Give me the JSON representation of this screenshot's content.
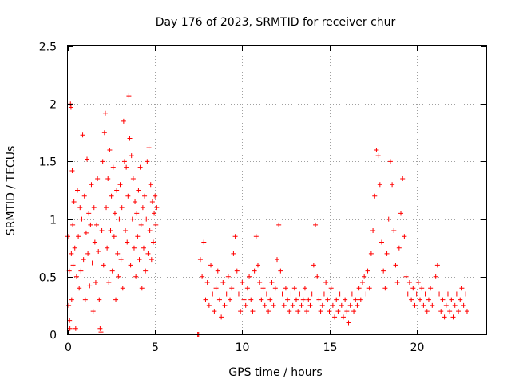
{
  "chart_data": {
    "type": "scatter",
    "title": "Day 176 of 2023, SRMTID for receiver chur",
    "xlabel": "GPS time / hours",
    "ylabel": "SRMTID / TECUs",
    "xlim": [
      0,
      24
    ],
    "ylim": [
      0,
      2.5
    ],
    "xticks": [
      0,
      5,
      10,
      15,
      20
    ],
    "xtick_labels": [
      "0",
      "5",
      "10",
      "15",
      "20"
    ],
    "yticks": [
      0,
      0.5,
      1,
      1.5,
      2,
      2.5
    ],
    "ytick_labels": [
      "0",
      "0.5",
      "1",
      "1.5",
      "2",
      "2.5"
    ],
    "grid": true,
    "marker": "+",
    "color": "#ff0000",
    "series": [
      {
        "name": "SRMTID",
        "points": [
          [
            0.0,
            0.85
          ],
          [
            0.05,
            0.25
          ],
          [
            0.08,
            0.55
          ],
          [
            0.1,
            0.12
          ],
          [
            0.12,
            0.05
          ],
          [
            0.15,
            2.0
          ],
          [
            0.18,
            1.97
          ],
          [
            0.2,
            0.7
          ],
          [
            0.22,
            0.3
          ],
          [
            0.25,
            1.42
          ],
          [
            0.28,
            0.95
          ],
          [
            0.3,
            0.6
          ],
          [
            0.35,
            1.15
          ],
          [
            0.4,
            0.75
          ],
          [
            0.45,
            0.05
          ],
          [
            0.5,
            0.5
          ],
          [
            0.55,
            1.25
          ],
          [
            0.6,
            0.85
          ],
          [
            0.65,
            0.4
          ],
          [
            0.7,
            1.1
          ],
          [
            0.75,
            0.55
          ],
          [
            0.8,
            1.0
          ],
          [
            0.85,
            1.73
          ],
          [
            0.9,
            0.65
          ],
          [
            0.95,
            1.2
          ],
          [
            1.0,
            0.3
          ],
          [
            1.05,
            0.88
          ],
          [
            1.1,
            1.52
          ],
          [
            1.15,
            0.7
          ],
          [
            1.2,
            1.05
          ],
          [
            1.25,
            0.42
          ],
          [
            1.3,
            0.95
          ],
          [
            1.35,
            1.3
          ],
          [
            1.4,
            0.62
          ],
          [
            1.45,
            0.2
          ],
          [
            1.5,
            1.1
          ],
          [
            1.55,
            0.8
          ],
          [
            1.6,
            0.45
          ],
          [
            1.65,
            0.95
          ],
          [
            1.7,
            1.35
          ],
          [
            1.75,
            0.72
          ],
          [
            1.8,
            0.3
          ],
          [
            1.85,
            0.05
          ],
          [
            1.9,
            0.02
          ],
          [
            1.95,
            0.9
          ],
          [
            2.0,
            1.5
          ],
          [
            2.05,
            0.6
          ],
          [
            2.1,
            1.75
          ],
          [
            2.15,
            1.92
          ],
          [
            2.2,
            1.1
          ],
          [
            2.25,
            0.75
          ],
          [
            2.3,
            1.35
          ],
          [
            2.35,
            0.45
          ],
          [
            2.4,
            1.6
          ],
          [
            2.45,
            0.9
          ],
          [
            2.5,
            1.2
          ],
          [
            2.55,
            0.55
          ],
          [
            2.6,
            1.45
          ],
          [
            2.65,
            0.85
          ],
          [
            2.7,
            1.05
          ],
          [
            2.75,
            0.3
          ],
          [
            2.8,
            1.25
          ],
          [
            2.85,
            0.7
          ],
          [
            2.9,
            0.5
          ],
          [
            2.95,
            1.0
          ],
          [
            3.0,
            1.3
          ],
          [
            3.05,
            0.65
          ],
          [
            3.1,
            1.1
          ],
          [
            3.15,
            0.4
          ],
          [
            3.2,
            1.85
          ],
          [
            3.25,
            1.5
          ],
          [
            3.3,
            0.9
          ],
          [
            3.35,
            1.45
          ],
          [
            3.4,
            0.8
          ],
          [
            3.45,
            1.2
          ],
          [
            3.5,
            2.07
          ],
          [
            3.55,
            1.7
          ],
          [
            3.6,
            0.6
          ],
          [
            3.65,
            1.55
          ],
          [
            3.7,
            1.0
          ],
          [
            3.75,
            1.35
          ],
          [
            3.8,
            0.75
          ],
          [
            3.85,
            1.15
          ],
          [
            3.9,
            0.5
          ],
          [
            3.95,
            1.05
          ],
          [
            4.0,
            0.85
          ],
          [
            4.05,
            1.25
          ],
          [
            4.1,
            0.65
          ],
          [
            4.15,
            1.45
          ],
          [
            4.2,
            0.95
          ],
          [
            4.25,
            0.4
          ],
          [
            4.3,
            1.1
          ],
          [
            4.35,
            0.75
          ],
          [
            4.4,
            1.2
          ],
          [
            4.45,
            0.55
          ],
          [
            4.5,
            1.0
          ],
          [
            4.55,
            1.5
          ],
          [
            4.6,
            0.7
          ],
          [
            4.65,
            1.62
          ],
          [
            4.7,
            0.9
          ],
          [
            4.75,
            1.3
          ],
          [
            4.8,
            0.65
          ],
          [
            4.85,
            1.15
          ],
          [
            4.9,
            0.8
          ],
          [
            4.95,
            1.05
          ],
          [
            5.0,
            1.2
          ],
          [
            5.05,
            0.95
          ],
          [
            5.1,
            1.1
          ],
          [
            7.45,
            0.0
          ],
          [
            7.5,
            0.0
          ],
          [
            7.6,
            0.65
          ],
          [
            7.7,
            0.5
          ],
          [
            7.8,
            0.8
          ],
          [
            7.9,
            0.3
          ],
          [
            8.0,
            0.45
          ],
          [
            8.1,
            0.25
          ],
          [
            8.2,
            0.6
          ],
          [
            8.3,
            0.35
          ],
          [
            8.4,
            0.2
          ],
          [
            8.5,
            0.4
          ],
          [
            8.6,
            0.55
          ],
          [
            8.7,
            0.3
          ],
          [
            8.8,
            0.15
          ],
          [
            8.9,
            0.45
          ],
          [
            9.0,
            0.25
          ],
          [
            9.1,
            0.35
          ],
          [
            9.2,
            0.5
          ],
          [
            9.3,
            0.3
          ],
          [
            9.4,
            0.4
          ],
          [
            9.5,
            0.7
          ],
          [
            9.6,
            0.85
          ],
          [
            9.7,
            0.55
          ],
          [
            9.8,
            0.35
          ],
          [
            9.9,
            0.2
          ],
          [
            10.0,
            0.45
          ],
          [
            10.1,
            0.3
          ],
          [
            10.2,
            0.25
          ],
          [
            10.3,
            0.4
          ],
          [
            10.4,
            0.5
          ],
          [
            10.5,
            0.3
          ],
          [
            10.6,
            0.2
          ],
          [
            10.7,
            0.55
          ],
          [
            10.8,
            0.85
          ],
          [
            10.9,
            0.6
          ],
          [
            11.0,
            0.45
          ],
          [
            11.1,
            0.3
          ],
          [
            11.2,
            0.4
          ],
          [
            11.3,
            0.25
          ],
          [
            11.4,
            0.35
          ],
          [
            11.5,
            0.2
          ],
          [
            11.6,
            0.3
          ],
          [
            11.7,
            0.45
          ],
          [
            11.8,
            0.25
          ],
          [
            11.9,
            0.4
          ],
          [
            12.0,
            0.65
          ],
          [
            12.1,
            0.95
          ],
          [
            12.2,
            0.55
          ],
          [
            12.3,
            0.35
          ],
          [
            12.4,
            0.25
          ],
          [
            12.5,
            0.4
          ],
          [
            12.6,
            0.3
          ],
          [
            12.7,
            0.2
          ],
          [
            12.8,
            0.35
          ],
          [
            12.9,
            0.25
          ],
          [
            13.0,
            0.4
          ],
          [
            13.1,
            0.3
          ],
          [
            13.2,
            0.2
          ],
          [
            13.3,
            0.35
          ],
          [
            13.4,
            0.25
          ],
          [
            13.5,
            0.3
          ],
          [
            13.6,
            0.4
          ],
          [
            13.7,
            0.2
          ],
          [
            13.8,
            0.3
          ],
          [
            13.9,
            0.25
          ],
          [
            14.0,
            0.35
          ],
          [
            14.1,
            0.6
          ],
          [
            14.2,
            0.95
          ],
          [
            14.3,
            0.5
          ],
          [
            14.4,
            0.3
          ],
          [
            14.5,
            0.2
          ],
          [
            14.6,
            0.25
          ],
          [
            14.7,
            0.35
          ],
          [
            14.8,
            0.45
          ],
          [
            14.9,
            0.3
          ],
          [
            15.0,
            0.2
          ],
          [
            15.1,
            0.4
          ],
          [
            15.2,
            0.25
          ],
          [
            15.3,
            0.15
          ],
          [
            15.4,
            0.3
          ],
          [
            15.5,
            0.2
          ],
          [
            15.6,
            0.35
          ],
          [
            15.7,
            0.25
          ],
          [
            15.8,
            0.15
          ],
          [
            15.9,
            0.3
          ],
          [
            16.0,
            0.2
          ],
          [
            16.1,
            0.1
          ],
          [
            16.2,
            0.25
          ],
          [
            16.3,
            0.35
          ],
          [
            16.4,
            0.2
          ],
          [
            16.5,
            0.3
          ],
          [
            16.6,
            0.25
          ],
          [
            16.7,
            0.4
          ],
          [
            16.8,
            0.3
          ],
          [
            16.9,
            0.45
          ],
          [
            17.0,
            0.5
          ],
          [
            17.1,
            0.35
          ],
          [
            17.2,
            0.55
          ],
          [
            17.3,
            0.4
          ],
          [
            17.4,
            0.7
          ],
          [
            17.5,
            0.9
          ],
          [
            17.6,
            1.2
          ],
          [
            17.7,
            1.6
          ],
          [
            17.8,
            1.55
          ],
          [
            17.9,
            1.3
          ],
          [
            18.0,
            0.8
          ],
          [
            18.1,
            0.55
          ],
          [
            18.2,
            0.4
          ],
          [
            18.3,
            0.7
          ],
          [
            18.4,
            1.0
          ],
          [
            18.5,
            1.5
          ],
          [
            18.6,
            1.3
          ],
          [
            18.7,
            0.9
          ],
          [
            18.8,
            0.6
          ],
          [
            18.9,
            0.45
          ],
          [
            19.0,
            0.75
          ],
          [
            19.1,
            1.05
          ],
          [
            19.2,
            1.35
          ],
          [
            19.3,
            0.85
          ],
          [
            19.4,
            0.5
          ],
          [
            19.5,
            0.35
          ],
          [
            19.6,
            0.45
          ],
          [
            19.7,
            0.3
          ],
          [
            19.8,
            0.4
          ],
          [
            19.9,
            0.25
          ],
          [
            20.0,
            0.35
          ],
          [
            20.1,
            0.45
          ],
          [
            20.2,
            0.3
          ],
          [
            20.3,
            0.4
          ],
          [
            20.4,
            0.25
          ],
          [
            20.5,
            0.35
          ],
          [
            20.6,
            0.2
          ],
          [
            20.7,
            0.3
          ],
          [
            20.8,
            0.4
          ],
          [
            20.9,
            0.25
          ],
          [
            21.0,
            0.35
          ],
          [
            21.1,
            0.5
          ],
          [
            21.2,
            0.6
          ],
          [
            21.3,
            0.35
          ],
          [
            21.4,
            0.2
          ],
          [
            21.5,
            0.3
          ],
          [
            21.6,
            0.15
          ],
          [
            21.7,
            0.25
          ],
          [
            21.8,
            0.35
          ],
          [
            21.9,
            0.2
          ],
          [
            22.0,
            0.3
          ],
          [
            22.1,
            0.15
          ],
          [
            22.2,
            0.25
          ],
          [
            22.3,
            0.35
          ],
          [
            22.4,
            0.2
          ],
          [
            22.5,
            0.3
          ],
          [
            22.6,
            0.4
          ],
          [
            22.7,
            0.25
          ],
          [
            22.8,
            0.35
          ],
          [
            22.9,
            0.2
          ]
        ]
      }
    ]
  }
}
